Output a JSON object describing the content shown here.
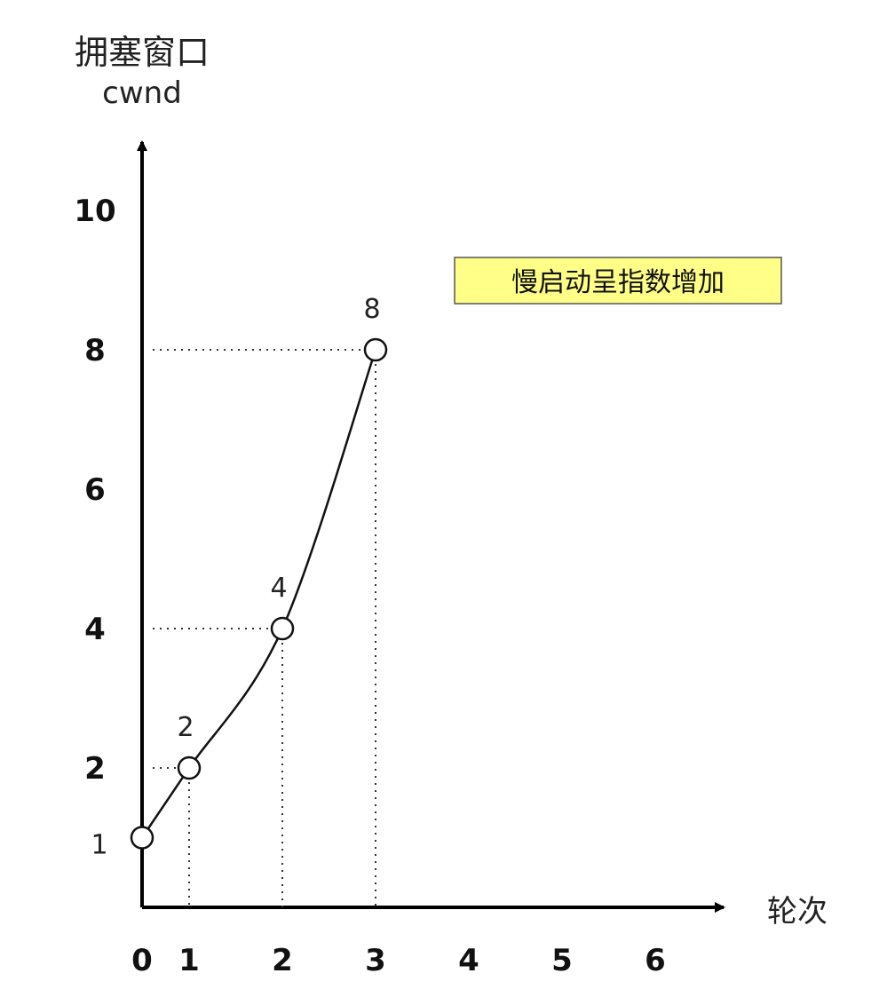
{
  "chart_data": {
    "type": "line",
    "ylabel_line1": "拥塞窗口",
    "ylabel_line2": "cwnd",
    "xlabel": "轮次",
    "x_ticks": [
      "0",
      "1",
      "2",
      "3",
      "4",
      "5",
      "6"
    ],
    "y_ticks": [
      "2",
      "4",
      "6",
      "8",
      "10"
    ],
    "annotation": "慢启动呈指数增加",
    "annotation_bg": "#ffff88",
    "points": [
      {
        "x": 0,
        "y": 1,
        "label": "1"
      },
      {
        "x": 1,
        "y": 2,
        "label": "2"
      },
      {
        "x": 2,
        "y": 4,
        "label": "4"
      },
      {
        "x": 3,
        "y": 8,
        "label": "8"
      }
    ],
    "xlim": [
      0,
      6
    ],
    "ylim": [
      0,
      10
    ],
    "grid": false
  }
}
